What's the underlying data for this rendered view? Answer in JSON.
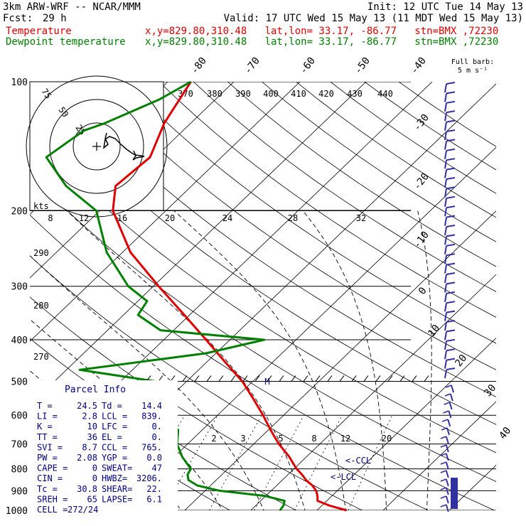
{
  "header": {
    "model": "3km ARW-WRF -- NCAR/MMM",
    "init": "Init: 12 UTC Tue 14 May 13",
    "fcst_label": "Fcst:",
    "fcst_value": "29 h",
    "valid": "Valid: 17 UTC Wed 15 May 13 (11 MDT Wed 15 May 13)",
    "temp_name": "Temperature",
    "temp_info": "x,y=829.80,310.48   lat,lon= 33.17, -86.77   stn=BMX ,72230",
    "dew_name": "Dewpoint temperature",
    "dew_info": "x,y=829.80,310.48   lat,lon= 33.17, -86.77   stn=BMX ,72230",
    "full_barb": "Full barb:",
    "full_barb_value": "5 m s⁻¹",
    "colors": {
      "temperature": "#e00000",
      "dewpoint": "#008000",
      "wind": "#3030a0"
    }
  },
  "chart_data": {
    "type": "line",
    "chart_kind": "skew-T log-p sounding",
    "pressure_levels": [
      "100",
      "200",
      "300",
      "400",
      "500",
      "600",
      "700",
      "800",
      "900",
      "1000"
    ],
    "skewed_isotherm_labels": [
      "-80",
      "-70",
      "-60",
      "-50",
      "-40",
      "-30",
      "-20",
      "-10",
      "0",
      "10",
      "20",
      "30",
      "40"
    ],
    "theta_labels_top": [
      "370",
      "380",
      "390",
      "400",
      "410",
      "420",
      "430",
      "440"
    ],
    "theta_labels_left": [
      "290",
      "280",
      "270"
    ],
    "mixing_ratio_labels": [
      "2",
      "3",
      "5",
      "8",
      "12",
      "20"
    ],
    "wind_speed_label": "kts",
    "wind_speed_ticks": [
      "8",
      "12",
      "16",
      "20",
      "24",
      "28",
      "32"
    ],
    "hodograph_rings": [
      "75",
      "50",
      "25"
    ],
    "annotations": {
      "ccl": "<-CCL",
      "lcl": "<-LCL",
      "m": "M"
    },
    "series": [
      {
        "name": "Temperature",
        "p": [
          1000,
          975,
          950,
          925,
          900,
          875,
          850,
          825,
          800,
          775,
          750,
          700,
          650,
          600,
          550,
          500,
          450,
          400,
          350,
          300,
          250,
          200,
          175,
          150,
          125,
          100
        ],
        "t": [
          24.5,
          21.2,
          18.6,
          17.8,
          16.8,
          15.4,
          13.6,
          12.1,
          10.4,
          8.9,
          7.4,
          3.8,
          0.4,
          -3.1,
          -7.1,
          -11.6,
          -17.3,
          -23.6,
          -30.8,
          -39.2,
          -48.8,
          -58.0,
          -61.5,
          -60.8,
          -64.0,
          -66.5
        ]
      },
      {
        "name": "Dewpoint temperature",
        "p": [
          1000,
          975,
          950,
          925,
          900,
          875,
          850,
          825,
          800,
          775,
          750,
          700,
          650,
          600,
          550,
          500,
          470,
          430,
          400,
          380,
          350,
          325,
          300,
          250,
          200,
          175,
          150,
          130,
          125,
          110,
          100
        ],
        "t": [
          14.4,
          14.2,
          13.6,
          9.8,
          2.2,
          -2.0,
          -4.2,
          -5.2,
          -5.6,
          -7.2,
          -8.8,
          -11.6,
          -13.6,
          -17.6,
          -21.5,
          -24.7,
          -38.0,
          -21.5,
          -14.8,
          -32.0,
          -37.8,
          -38.6,
          -43.8,
          -52.4,
          -60.5,
          -69.0,
          -76.5,
          -75.0,
          -73.0,
          -68.5,
          -66.5
        ]
      }
    ],
    "wind_barbs": "speed-only",
    "xlim": [
      -40,
      40
    ],
    "ylim": [
      1000,
      100
    ],
    "parcel_info": {
      "title": "Parcel Info",
      "rows": [
        [
          "T  =",
          "24.5",
          "Td =",
          "14.4"
        ],
        [
          "LI =",
          "2.8",
          "LCL =",
          "839."
        ],
        [
          "K  =",
          "10",
          "LFC =",
          "0."
        ],
        [
          "TT =",
          "36",
          "EL =",
          "0."
        ],
        [
          "SVI =",
          "8.7",
          "CCL =",
          "765."
        ],
        [
          "PW =",
          "2.08",
          "YGP =",
          "0.0"
        ],
        [
          "CAPE =",
          "0",
          "SWEAT=",
          "47"
        ],
        [
          "CIN =",
          "0",
          "HWBZ=",
          "3206."
        ],
        [
          "Tc =",
          "30.8",
          "SHEAR=",
          "22."
        ],
        [
          "SREH =",
          "65",
          "LAPSE=",
          "6.1"
        ],
        [
          "CELL =",
          "272/24",
          "",
          ""
        ]
      ]
    }
  }
}
